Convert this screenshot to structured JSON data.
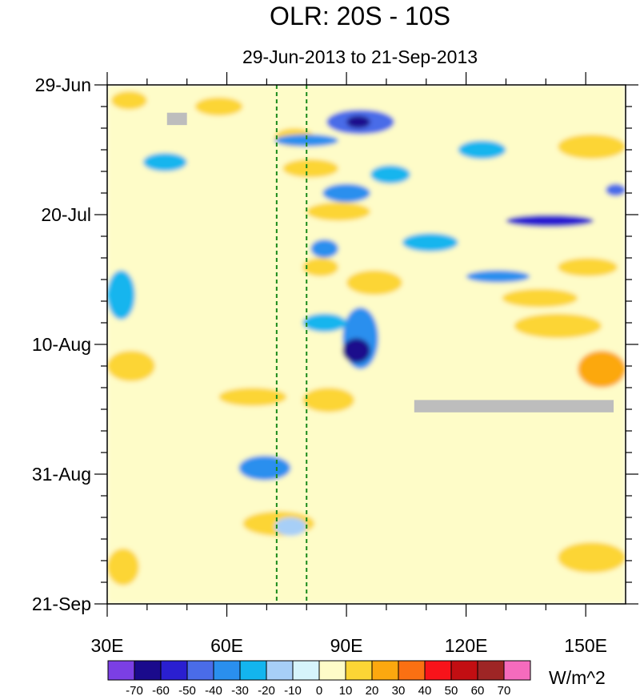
{
  "chart_data": {
    "type": "heatmap",
    "title": "OLR: 20S - 10S",
    "subtitle": "29-Jun-2013 to 21-Sep-2013",
    "xlabel": "",
    "ylabel": "",
    "xlim": [
      30,
      160
    ],
    "x_ticks": [
      30,
      60,
      90,
      120,
      150
    ],
    "x_tick_labels": [
      "30E",
      "60E",
      "90E",
      "120E",
      "150E"
    ],
    "ylim_days_since_29jun": [
      0,
      84
    ],
    "y_ticks": [
      0,
      21,
      42,
      63,
      84
    ],
    "y_tick_labels": [
      "29-Jun",
      "20-Jul",
      "10-Aug",
      "31-Aug",
      "21-Sep"
    ],
    "reference_lines_lon": [
      72.5,
      80
    ],
    "units": "W/m^2",
    "colorbar_levels": [
      -70,
      -60,
      -50,
      -40,
      -30,
      -20,
      -10,
      0,
      10,
      20,
      30,
      40,
      50,
      60,
      70
    ],
    "colorbar_tick_labels": [
      "-70",
      "-60",
      "-50",
      "-40",
      "-30",
      "-20",
      "-10",
      "0",
      "10",
      "20",
      "30",
      "40",
      "50",
      "60",
      "70"
    ],
    "colorbar_colors": [
      "#7b3fe4",
      "#1a0a8c",
      "#2a1fd0",
      "#4a6ce8",
      "#2a8fee",
      "#13b5ee",
      "#a7cff7",
      "#d6f4fb",
      "#fefcc8",
      "#fcd535",
      "#fca80f",
      "#fb7012",
      "#f8131a",
      "#c20e12",
      "#9e2525",
      "#f56bbd"
    ],
    "missing_color": "#bdbdbd",
    "missing_regions": [
      {
        "lon": [
          45,
          50
        ],
        "day": [
          4.5,
          6.5
        ]
      },
      {
        "lon": [
          107,
          157
        ],
        "day": [
          51,
          53
        ]
      }
    ],
    "features": [
      {
        "lon": [
          30,
          160
        ],
        "day": [
          0,
          84
        ],
        "anomaly": 5
      },
      {
        "lon": [
          31,
          40
        ],
        "day": [
          1,
          4
        ],
        "anomaly": 15
      },
      {
        "lon": [
          52,
          64
        ],
        "day": [
          2,
          5
        ],
        "anomaly": 15
      },
      {
        "lon": [
          72,
          82
        ],
        "day": [
          7,
          10
        ],
        "anomaly": 15
      },
      {
        "lon": [
          74,
          88
        ],
        "day": [
          12,
          15
        ],
        "anomaly": 15
      },
      {
        "lon": [
          80,
          96
        ],
        "day": [
          19,
          22
        ],
        "anomaly": 15
      },
      {
        "lon": [
          79,
          88
        ],
        "day": [
          28,
          31
        ],
        "anomaly": 15
      },
      {
        "lon": [
          90,
          104
        ],
        "day": [
          30,
          34
        ],
        "anomaly": 15
      },
      {
        "lon": [
          129,
          148
        ],
        "day": [
          33,
          36
        ],
        "anomaly": 15
      },
      {
        "lon": [
          143,
          158
        ],
        "day": [
          28,
          31
        ],
        "anomaly": 15
      },
      {
        "lon": [
          30,
          42
        ],
        "day": [
          43,
          48
        ],
        "anomaly": 15
      },
      {
        "lon": [
          58,
          75
        ],
        "day": [
          49,
          52
        ],
        "anomaly": 15
      },
      {
        "lon": [
          79,
          92
        ],
        "day": [
          49,
          53
        ],
        "anomaly": 15
      },
      {
        "lon": [
          132,
          154
        ],
        "day": [
          37,
          41
        ],
        "anomaly": 15
      },
      {
        "lon": [
          148,
          160
        ],
        "day": [
          43,
          49
        ],
        "anomaly": 25
      },
      {
        "lon": [
          30,
          38
        ],
        "day": [
          75,
          81
        ],
        "anomaly": 15
      },
      {
        "lon": [
          64,
          82
        ],
        "day": [
          69,
          73
        ],
        "anomaly": 15
      },
      {
        "lon": [
          143,
          160
        ],
        "day": [
          74,
          79
        ],
        "anomaly": 15
      },
      {
        "lon": [
          143,
          160
        ],
        "day": [
          8,
          12
        ],
        "anomaly": 15
      },
      {
        "lon": [
          85,
          102
        ],
        "day": [
          4,
          8
        ],
        "anomaly": -45
      },
      {
        "lon": [
          90,
          96
        ],
        "day": [
          5,
          7
        ],
        "anomaly": -65
      },
      {
        "lon": [
          72,
          88
        ],
        "day": [
          8,
          10
        ],
        "anomaly": -30
      },
      {
        "lon": [
          84,
          96
        ],
        "day": [
          16,
          19
        ],
        "anomaly": -30
      },
      {
        "lon": [
          130,
          152
        ],
        "day": [
          21,
          23
        ],
        "anomaly": -50
      },
      {
        "lon": [
          104,
          118
        ],
        "day": [
          24,
          27
        ],
        "anomaly": -20
      },
      {
        "lon": [
          81,
          88
        ],
        "day": [
          25,
          28
        ],
        "anomaly": -35
      },
      {
        "lon": [
          120,
          136
        ],
        "day": [
          30,
          32
        ],
        "anomaly": -30
      },
      {
        "lon": [
          89,
          98
        ],
        "day": [
          36,
          46
        ],
        "anomaly": -35
      },
      {
        "lon": [
          89,
          96
        ],
        "day": [
          41,
          45
        ],
        "anomaly": -60
      },
      {
        "lon": [
          79,
          90
        ],
        "day": [
          37,
          40
        ],
        "anomaly": -25
      },
      {
        "lon": [
          63,
          76
        ],
        "day": [
          60,
          64
        ],
        "anomaly": -30
      },
      {
        "lon": [
          72,
          80
        ],
        "day": [
          70,
          73
        ],
        "anomaly": -15
      },
      {
        "lon": [
          39,
          50
        ],
        "day": [
          11,
          14
        ],
        "anomaly": -20
      },
      {
        "lon": [
          30,
          37
        ],
        "day": [
          30,
          38
        ],
        "anomaly": -20
      },
      {
        "lon": [
          155,
          160
        ],
        "day": [
          16,
          18
        ],
        "anomaly": -40
      },
      {
        "lon": [
          118,
          130
        ],
        "day": [
          9,
          12
        ],
        "anomaly": -20
      },
      {
        "lon": [
          96,
          106
        ],
        "day": [
          13,
          16
        ],
        "anomaly": -25
      }
    ]
  }
}
